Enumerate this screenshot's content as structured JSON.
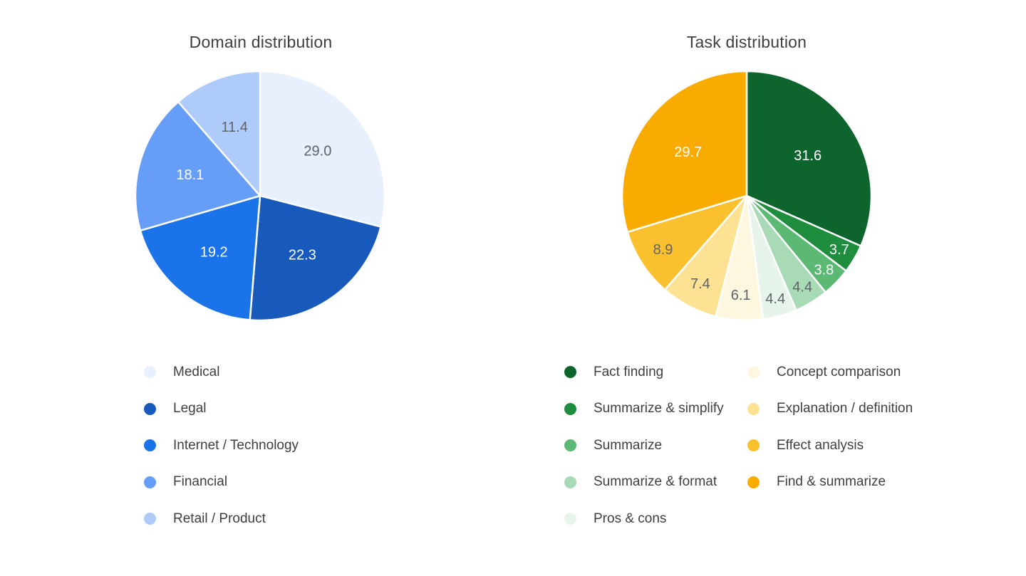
{
  "theme": {
    "background": "#FFFFFF",
    "title_color": "#3C4043",
    "legend_text_color": "#3C4043",
    "muted_value_label_color": "#5F6368",
    "light_value_label_color": "#FFFFFF",
    "slice_separator_color": "#FFFFFF"
  },
  "chart_data": [
    {
      "type": "pie",
      "title": "Domain distribution",
      "categories": [
        "Medical",
        "Legal",
        "Internet / Technology",
        "Financial",
        "Retail / Product"
      ],
      "values": [
        29.0,
        22.3,
        19.2,
        18.1,
        11.4
      ],
      "values_display": [
        "29.0",
        "22.3",
        "19.2",
        "18.1",
        "11.4"
      ],
      "colors": [
        "#E8F0FE",
        "#185ABC",
        "#1A73E8",
        "#669DF6",
        "#AECBFA"
      ],
      "value_label_colors": [
        "#5F6368",
        "#FFFFFF",
        "#FFFFFF",
        "#FFFFFF",
        "#5F6368"
      ],
      "start_angle": "12-o-clock",
      "direction": "clockwise",
      "legend_position": "below",
      "legend_column_split": [
        5
      ]
    },
    {
      "type": "pie",
      "title": "Task distribution",
      "categories": [
        "Fact finding",
        "Summarize & simplify",
        "Summarize",
        "Summarize & format",
        "Pros & cons",
        "Concept comparison",
        "Explanation / definition",
        "Effect analysis",
        "Find & summarize"
      ],
      "values": [
        31.6,
        3.7,
        3.8,
        4.4,
        4.4,
        6.1,
        7.4,
        8.9,
        29.7
      ],
      "values_display": [
        "31.6",
        "3.7",
        "3.8",
        "4.4",
        "4.4",
        "6.1",
        "7.4",
        "8.9",
        "29.7"
      ],
      "colors": [
        "#0D652D",
        "#1E8E3E",
        "#5BB974",
        "#A8DAB5",
        "#E6F4EA",
        "#FEF7E0",
        "#FDE293",
        "#FBC02D",
        "#F9AB00"
      ],
      "value_label_colors": [
        "#FFFFFF",
        "#FFFFFF",
        "#FFFFFF",
        "#5F6368",
        "#5F6368",
        "#5F6368",
        "#5F6368",
        "#5F6368",
        "#FFFFFF"
      ],
      "start_angle": "12-o-clock",
      "direction": "clockwise",
      "legend_position": "below",
      "legend_column_split": [
        5,
        4
      ]
    }
  ]
}
